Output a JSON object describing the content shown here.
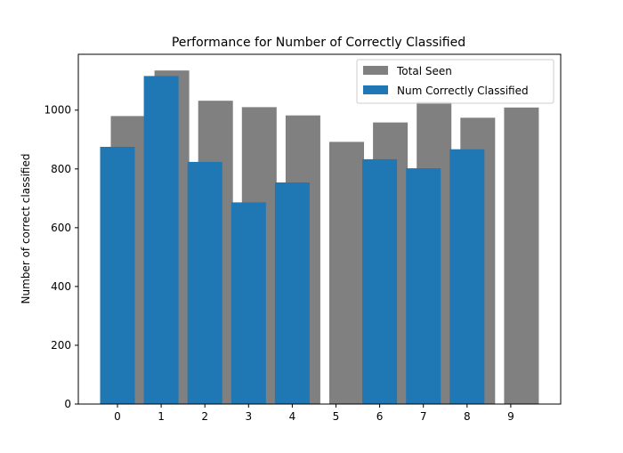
{
  "chart_data": {
    "type": "bar",
    "title": "Performance for Number of Correctly Classified",
    "xlabel": "",
    "ylabel": "Number of correct classified",
    "categories": [
      "0",
      "1",
      "2",
      "3",
      "4",
      "5",
      "6",
      "7",
      "8",
      "9"
    ],
    "yticks": [
      0,
      200,
      400,
      600,
      800,
      1000
    ],
    "ylim": [
      0,
      1190
    ],
    "legend_position": "top-right",
    "grid": false,
    "series": [
      {
        "name": "Total Seen",
        "color": "#808080",
        "values": [
          980,
          1135,
          1032,
          1010,
          982,
          892,
          958,
          1028,
          974,
          1009
        ]
      },
      {
        "name": "Num Correctly Classified",
        "color": "#1f77b4",
        "values": [
          875,
          1116,
          824,
          686,
          754,
          0,
          833,
          802,
          867,
          0
        ]
      }
    ]
  }
}
